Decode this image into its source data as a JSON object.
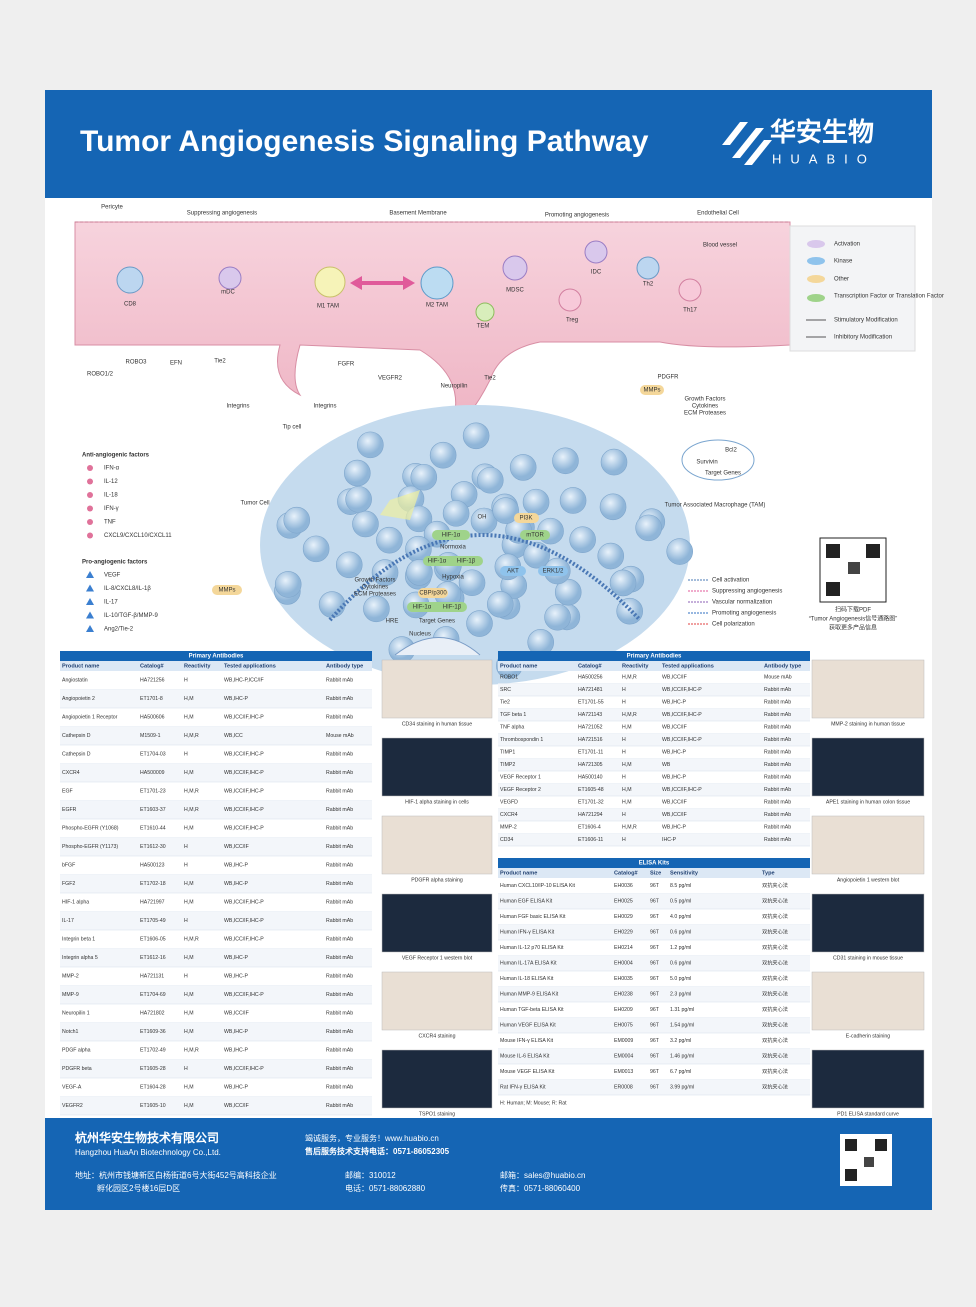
{
  "header": {
    "title": "Tumor Angiogenesis Signaling Pathway",
    "logo_cn": "华安生物",
    "logo_en": "HUABIO"
  },
  "diagram": {
    "labels": [
      "Pericyte",
      "Suppressing angiogenesis",
      "Basement Membrane",
      "Promoting angiogenesis",
      "Endothelial Cell",
      "Blood vessel",
      "mDC",
      "CD8",
      "M1 TAM",
      "M2 TAM",
      "MDSC",
      "IDC",
      "Th2",
      "TEM",
      "Treg",
      "Th17",
      "ROBO1/2",
      "ROBO3",
      "EFN",
      "Tie2",
      "FGFR",
      "VEGFR2",
      "Neuropilin",
      "Tie2",
      "PDGFR",
      "MMPs",
      "Integrins",
      "Integrins",
      "Tip cell",
      "Growth Factors",
      "Cytokines",
      "ECM Proteases",
      "Tumor Associated Macrophage (TAM)",
      "Tumor Cell",
      "Bcl2",
      "Survivin",
      "Target Genes",
      "OH",
      "HIF-1α",
      "Normoxia",
      "HIF-1α",
      "HIF-1β",
      "Hypoxia",
      "PI3K",
      "mTOR",
      "AKT",
      "ERK1/2",
      "Growth Factors",
      "Cytokines",
      "ECM Proteases",
      "MMPs",
      "CBP/p300",
      "HIF-1α",
      "HIF-1β",
      "HRE",
      "Target Genes",
      "Nucleus"
    ],
    "anti_title": "Anti-angiogenic factors",
    "anti": [
      "IFN-α",
      "IL-12",
      "IL-18",
      "IFN-γ",
      "TNF",
      "CXCL9/CXCL10/CXCL11"
    ],
    "pro_title": "Pro-angiogenic factors",
    "pro": [
      "VEGF",
      "IL-8/CXCL8/IL-1β",
      "IL-17",
      "IL-10/TGF-β/MMP-9",
      "Ang2/Tie-2"
    ],
    "legend": [
      "Activation",
      "Kinase",
      "Other",
      "Transcription Factor or Translation Factor",
      "Stimulatory Modification",
      "Inhibitory Modification"
    ],
    "legend2": [
      "Cell activation",
      "Suppressing angiogenesis",
      "Vascular normalization",
      "Promoting angiogenesis",
      "Cell polarization"
    ],
    "qr_caption": [
      "扫码下载PDF",
      "“Tumor Angiogenesis信号通路图”",
      "获取更多产品信息"
    ]
  },
  "table_left": {
    "title": "Primary Antibodies",
    "columns": [
      "Product name",
      "Catalog#",
      "Reactivity",
      "Tested applications",
      "Antibody type"
    ],
    "rows": [
      [
        "Angiostatin",
        "HA721256",
        "H",
        "WB,IHC-P,ICC/IF",
        "Rabbit mAb"
      ],
      [
        "Angiopoietin 2",
        "ET1701-8",
        "H,M",
        "WB,IHC-P",
        "Rabbit mAb"
      ],
      [
        "Angiopoietin 1 Receptor",
        "HA500606",
        "H,M",
        "WB,ICC/IF,IHC-P",
        "Rabbit mAb"
      ],
      [
        "Cathepsin D",
        "M1509-1",
        "H,M,R",
        "WB,ICC",
        "Mouse mAb"
      ],
      [
        "Cathepsin D",
        "ET1704-03",
        "H",
        "WB,ICC/IF,IHC-P",
        "Rabbit mAb"
      ],
      [
        "CXCR4",
        "HA500009",
        "H,M",
        "WB,ICC/IF,IHC-P",
        "Rabbit mAb"
      ],
      [
        "EGF",
        "ET1701-23",
        "H,M,R",
        "WB,ICC/IF,IHC-P",
        "Rabbit mAb"
      ],
      [
        "EGFR",
        "ET1603-37",
        "H,M,R",
        "WB,ICC/IF,IHC-P",
        "Rabbit mAb"
      ],
      [
        "Phospho-EGFR (Y1068)",
        "ET1610-44",
        "H,M",
        "WB,ICC/IF,IHC-P",
        "Rabbit mAb"
      ],
      [
        "Phospho-EGFR (Y1173)",
        "ET1612-30",
        "H",
        "WB,ICC/IF",
        "Rabbit mAb"
      ],
      [
        "bFGF",
        "HA500123",
        "H",
        "WB,IHC-P",
        "Rabbit mAb"
      ],
      [
        "FGF2",
        "ET1702-18",
        "H,M",
        "WB,IHC-P",
        "Rabbit mAb"
      ],
      [
        "HIF-1 alpha",
        "HA721997",
        "H,M",
        "WB,ICC/IF,IHC-P",
        "Rabbit mAb"
      ],
      [
        "IL-17",
        "ET1705-49",
        "H",
        "WB,ICC/IF,IHC-P",
        "Rabbit mAb"
      ],
      [
        "Integrin beta 1",
        "ET1606-05",
        "H,M,R",
        "WB,ICC/IF,IHC-P",
        "Rabbit mAb"
      ],
      [
        "Integrin alpha 5",
        "ET1612-16",
        "H,M",
        "WB,IHC-P",
        "Rabbit mAb"
      ],
      [
        "MMP-2",
        "HA721131",
        "H",
        "WB,IHC-P",
        "Rabbit mAb"
      ],
      [
        "MMP-9",
        "ET1704-69",
        "H,M",
        "WB,ICC/IF,IHC-P",
        "Rabbit mAb"
      ],
      [
        "Neuropilin 1",
        "HA721802",
        "H,M",
        "WB,ICC/IF",
        "Rabbit mAb"
      ],
      [
        "Notch1",
        "ET1609-36",
        "H,M",
        "WB,IHC-P",
        "Rabbit mAb"
      ],
      [
        "PDGF alpha",
        "ET1702-49",
        "H,M,R",
        "WB,IHC-P",
        "Rabbit mAb"
      ],
      [
        "PDGFR beta",
        "ET1605-28",
        "H",
        "WB,ICC/IF,IHC-P",
        "Rabbit mAb"
      ],
      [
        "VEGF-A",
        "ET1604-28",
        "H,M",
        "WB,IHC-P",
        "Rabbit mAb"
      ],
      [
        "VEGFR2",
        "ET1605-10",
        "H,M",
        "WB,ICC/IF",
        "Rabbit mAb"
      ]
    ]
  },
  "table_right": {
    "title": "Primary Antibodies",
    "columns": [
      "Product name",
      "Catalog#",
      "Reactivity",
      "Tested applications",
      "Antibody type"
    ],
    "rows": [
      [
        "ROBO1",
        "HA500256",
        "H,M,R",
        "WB,ICC/IF",
        "Mouse mAb"
      ],
      [
        "SRC",
        "HA721481",
        "H",
        "WB,ICC/IF,IHC-P",
        "Rabbit mAb"
      ],
      [
        "Tie2",
        "ET1701-55",
        "H",
        "WB,IHC-P",
        "Rabbit mAb"
      ],
      [
        "TGF beta 1",
        "HA721143",
        "H,M,R",
        "WB,ICC/IF,IHC-P",
        "Rabbit mAb"
      ],
      [
        "TNF alpha",
        "HA721052",
        "H,M",
        "WB,ICC/IF",
        "Rabbit mAb"
      ],
      [
        "Thrombospondin 1",
        "HA721516",
        "H",
        "WB,ICC/IF,IHC-P",
        "Rabbit mAb"
      ],
      [
        "TIMP1",
        "ET1701-11",
        "H",
        "WB,IHC-P",
        "Rabbit mAb"
      ],
      [
        "TIMP2",
        "HA721305",
        "H,M",
        "WB",
        "Rabbit mAb"
      ],
      [
        "VEGF Receptor 1",
        "HA500140",
        "H",
        "WB,IHC-P",
        "Rabbit mAb"
      ],
      [
        "VEGF Receptor 2",
        "ET1605-48",
        "H,M",
        "WB,ICC/IF,IHC-P",
        "Rabbit mAb"
      ],
      [
        "VEGFD",
        "ET1701-32",
        "H,M",
        "WB,ICC/IF",
        "Rabbit mAb"
      ],
      [
        "CXCR4",
        "HA721294",
        "H",
        "WB,ICC/IF",
        "Rabbit mAb"
      ],
      [
        "MMP-2",
        "ET1606-4",
        "H,M,R",
        "WB,IHC-P",
        "Rabbit mAb"
      ],
      [
        "CD34",
        "ET1606-11",
        "H",
        "IHC-P",
        "Rabbit mAb"
      ]
    ]
  },
  "elisa": {
    "title": "ELISA Kits",
    "columns": [
      "Product name",
      "Catalog#",
      "Size",
      "Sensitivity",
      "Type"
    ],
    "rows": [
      [
        "Human CXCL10/IP-10 ELISA Kit",
        "EH0036",
        "96T",
        "8.5 pg/ml",
        "双抗夹心法"
      ],
      [
        "Human EGF ELISA Kit",
        "EH0025",
        "96T",
        "0.5 pg/ml",
        "双抗夹心法"
      ],
      [
        "Human FGF basic ELISA Kit",
        "EH0029",
        "96T",
        "4.0 pg/ml",
        "双抗夹心法"
      ],
      [
        "Human IFN-γ ELISA Kit",
        "EH0229",
        "96T",
        "0.6 pg/ml",
        "双抗夹心法"
      ],
      [
        "Human IL-12 p70 ELISA Kit",
        "EH0214",
        "96T",
        "1.2 pg/ml",
        "双抗夹心法"
      ],
      [
        "Human IL-17A ELISA Kit",
        "EH0004",
        "96T",
        "0.6 pg/ml",
        "双抗夹心法"
      ],
      [
        "Human IL-18 ELISA Kit",
        "EH0035",
        "96T",
        "5.0 pg/ml",
        "双抗夹心法"
      ],
      [
        "Human MMP-9 ELISA Kit",
        "EH0238",
        "96T",
        "2.3 pg/ml",
        "双抗夹心法"
      ],
      [
        "Human TGF-beta ELISA Kit",
        "EH0209",
        "96T",
        "1.31 pg/ml",
        "双抗夹心法"
      ],
      [
        "Human VEGF ELISA Kit",
        "EH0075",
        "96T",
        "1.54 pg/ml",
        "双抗夹心法"
      ],
      [
        "Mouse IFN-γ ELISA Kit",
        "EM0009",
        "96T",
        "3.2 pg/ml",
        "双抗夹心法"
      ],
      [
        "Mouse IL-6 ELISA Kit",
        "EM0004",
        "96T",
        "1.46 pg/ml",
        "双抗夹心法"
      ],
      [
        "Mouse VEGF ELISA Kit",
        "EM0013",
        "96T",
        "6.7 pg/ml",
        "双抗夹心法"
      ],
      [
        "Rat IFN-γ ELISA Kit",
        "ER0008",
        "96T",
        "3.99 pg/ml",
        "双抗夹心法"
      ]
    ],
    "note": "H: Human; M: Mouse; R: Rat"
  },
  "images_left": [
    "CD34 staining in human tissue",
    "HIF-1 alpha staining in cells",
    "PDGFR alpha staining",
    "VEGF Receptor 1 western blot",
    "CXCR4 staining",
    "TSPO1 staining"
  ],
  "images_right": [
    "MMP-2 staining in human tissue",
    "APE1 staining in human colon tissue",
    "Angiopoietin 1 western blot",
    "CD31 staining in mouse tissue",
    "E-cadherin staining",
    "PD1 ELISA standard curve"
  ],
  "footer": {
    "company_cn": "杭州华安生物技术有限公司",
    "company_en": "Hangzhou HuaAn Biotechnology Co.,Ltd.",
    "service": "竭诚服务，专业服务！www.huabio.cn",
    "phone": "售后服务技术支持电话：0571-86052305",
    "address1": "地址：杭州市钱塘新区白杨街道6号大街452号高科技企业",
    "address2": "孵化园区2号楼16层D区",
    "zip": "邮编：310012",
    "tel": "电话：0571-88062880",
    "email": "邮箱：sales@huabio.cn",
    "fax": "传真：0571-88060400"
  }
}
